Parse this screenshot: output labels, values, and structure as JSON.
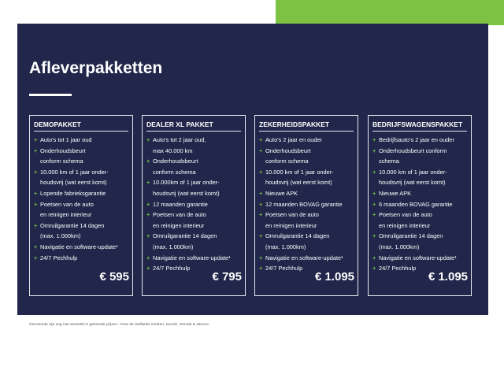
{
  "title": "Afleverpakketten",
  "packages": [
    {
      "name": "DEMOPAKKET",
      "price": "€ 595",
      "items": [
        [
          "Auto's tot 1 jaar oud"
        ],
        [
          "Onderhoudsbeurt",
          "conform schema"
        ],
        [
          "10.000 km of 1 jaar onder-",
          "houdsvrij (wat eerst komt)"
        ],
        [
          "Lopende fabrieksgarantie"
        ],
        [
          "Poetsen van de auto",
          "en reinigen interieur"
        ],
        [
          "Omruilgarantie 14 dagen",
          "(max. 1.000km)"
        ],
        [
          "Navigatie en software-update¹"
        ],
        [
          "24/7 Pechhulp"
        ]
      ]
    },
    {
      "name": "DEALER XL PAKKET",
      "price": "€ 795",
      "items": [
        [
          "Auto's tot 2 jaar oud,",
          "max 40.000 km"
        ],
        [
          "Onderhoudsbeurt",
          "conform schema"
        ],
        [
          "10.000km of 1 jaar onder-",
          "houdsvrij (wat eerst komt)"
        ],
        [
          "12 maanden garantie"
        ],
        [
          "Poetsen van de auto",
          "en reinigen interieur"
        ],
        [
          "Omruilgarantie 14 dagen",
          "(max. 1.000km)"
        ],
        [
          "Navigatie en software-update¹"
        ],
        [
          "24/7 Pechhulp"
        ]
      ]
    },
    {
      "name": "ZEKERHEIDSPAKKET",
      "price": "€ 1.095",
      "items": [
        [
          "Auto's 2 jaar en ouder"
        ],
        [
          "Onderhoudsbeurt",
          "conform schema"
        ],
        [
          "10.000 km of 1 jaar onder-",
          "houdsvrij (wat eerst komt)"
        ],
        [
          "Nieuwe APK"
        ],
        [
          "12 maanden BOVAG garantie"
        ],
        [
          "Poetsen van de auto",
          "en reinigen interieur"
        ],
        [
          "Omruilgarantie 14 dagen",
          "(max. 1.000km)"
        ],
        [
          "Navigatie en software-update¹"
        ],
        [
          "24/7 Pechhulp"
        ]
      ]
    },
    {
      "name": "BEDRIJFSWAGENSPAKKET",
      "price": "€ 1.095",
      "items": [
        [
          "Bedrijfsauto's 2 jaar en ouder"
        ],
        [
          "Onderhoudsbeurt conform",
          "schema"
        ],
        [
          "10.000 km of 1 jaar onder-",
          "houdsvrij (wat eerst komt)"
        ],
        [
          "Nieuwe APK"
        ],
        [
          "6 maanden BOVAG garantie"
        ],
        [
          "Poetsen van de auto",
          "en reinigen interieur"
        ],
        [
          "Omruilgarantie 14 dagen",
          "(max. 1.000km)"
        ],
        [
          "Navigatie en software-update¹"
        ],
        [
          "24/7 Pechhulp"
        ]
      ]
    }
  ],
  "footnote": "Genoemde zijn nog niet verwerkt in getoonde prijzen. ¹Voor de Stellantis merken, Suzuki, Omoda & Jaecoo."
}
